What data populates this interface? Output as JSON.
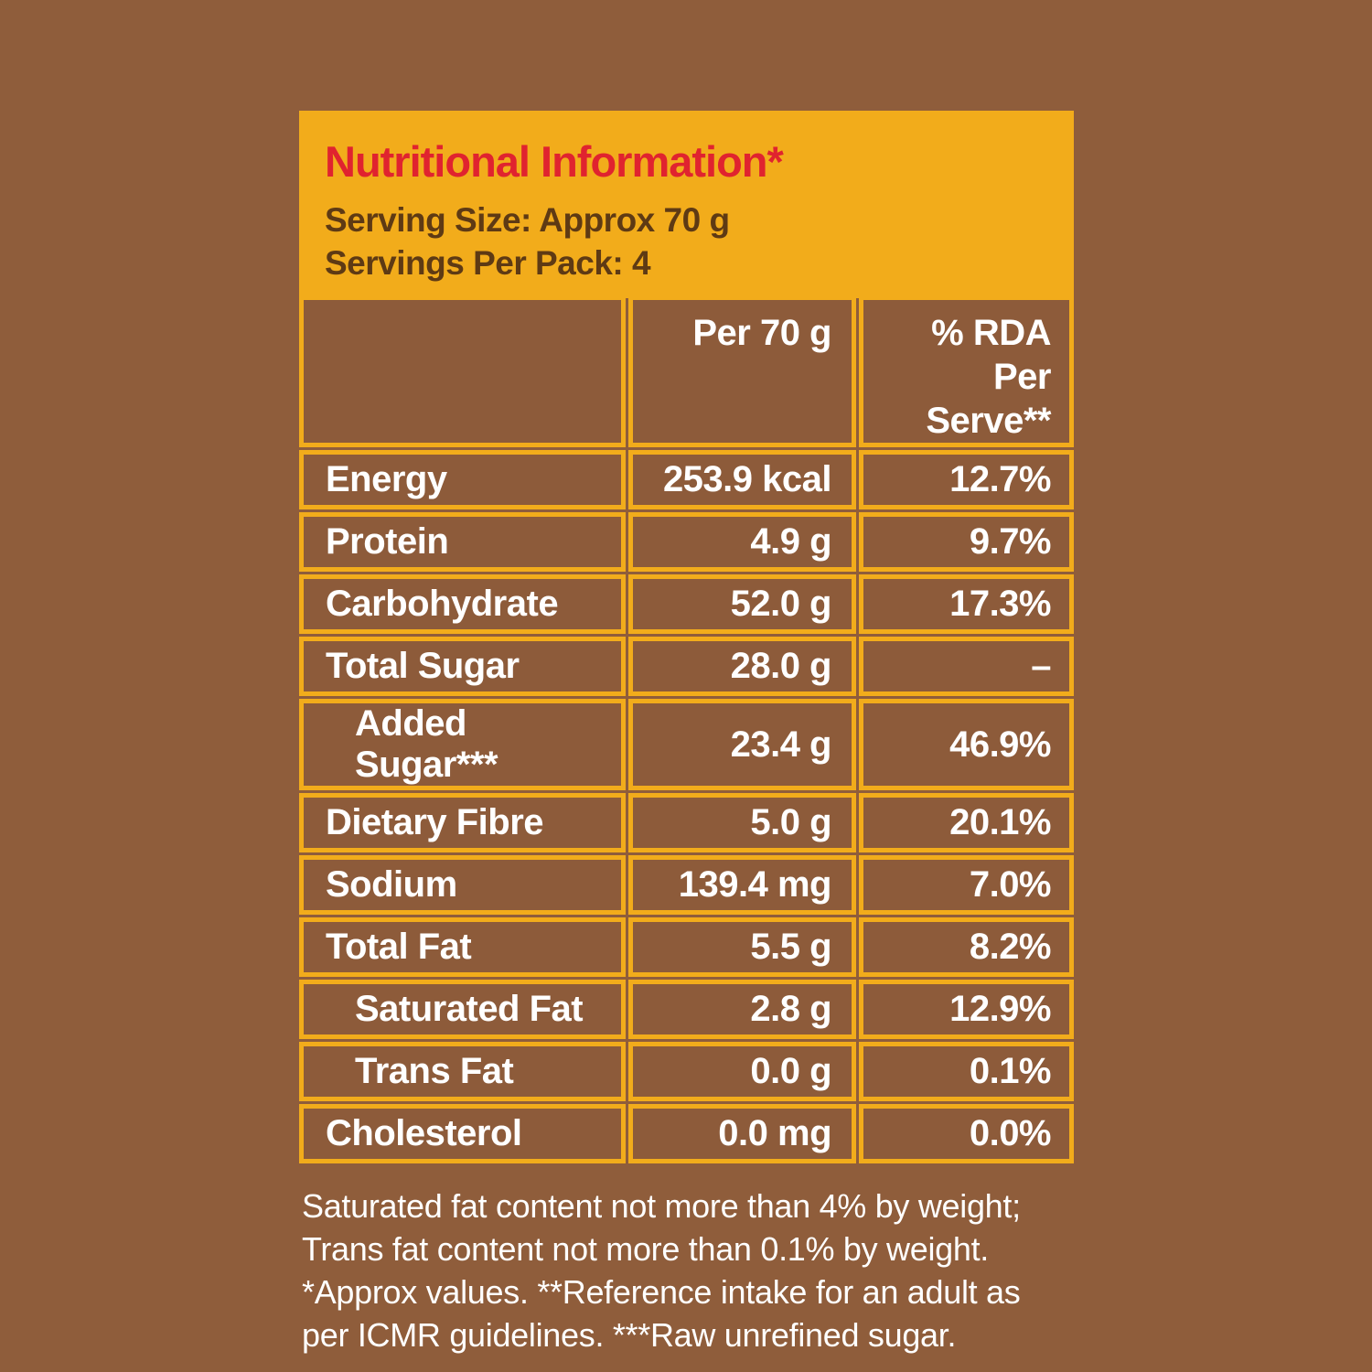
{
  "header": {
    "title": "Nutritional Information*",
    "serving_size": "Serving Size: Approx 70 g",
    "servings_per_pack": "Servings Per Pack: 4"
  },
  "table": {
    "col_per_serving": "Per 70 g",
    "col_rda_line1": "% RDA Per",
    "col_rda_line2": "Serve**",
    "rows": [
      {
        "label": "Energy",
        "value": "253.9 kcal",
        "rda": "12.7%"
      },
      {
        "label": "Protein",
        "value": "4.9 g",
        "rda": "9.7%"
      },
      {
        "label": "Carbohydrate",
        "value": "52.0 g",
        "rda": "17.3%"
      },
      {
        "label": "Total Sugar",
        "value": "28.0 g",
        "rda": "–"
      },
      {
        "label": "Added Sugar***",
        "value": "23.4 g",
        "rda": "46.9%"
      },
      {
        "label": "Dietary Fibre",
        "value": "5.0 g",
        "rda": "20.1%"
      },
      {
        "label": "Sodium",
        "value": "139.4 mg",
        "rda": "7.0%"
      },
      {
        "label": "Total Fat",
        "value": "5.5 g",
        "rda": "8.2%"
      },
      {
        "label": "Saturated Fat",
        "value": "2.8 g",
        "rda": "12.9%"
      },
      {
        "label": "Trans Fat",
        "value": "0.0 g",
        "rda": "0.1%"
      },
      {
        "label": "Cholesterol",
        "value": "0.0 mg",
        "rda": "0.0%"
      }
    ]
  },
  "footnote": "Saturated fat content not more than 4% by weight; Trans fat content not more than 0.1% by weight. *Approx values. **Reference intake for an adult as per ICMR guidelines. ***Raw unrefined sugar.",
  "colors": {
    "background_brown": "#8F5D3B",
    "cell_brown": "#8D5B3A",
    "accent_yellow": "#F2AC1B",
    "title_red": "#E0232F",
    "header_text_brown": "#5E3A14",
    "table_text_white": "#FFFFFF"
  }
}
